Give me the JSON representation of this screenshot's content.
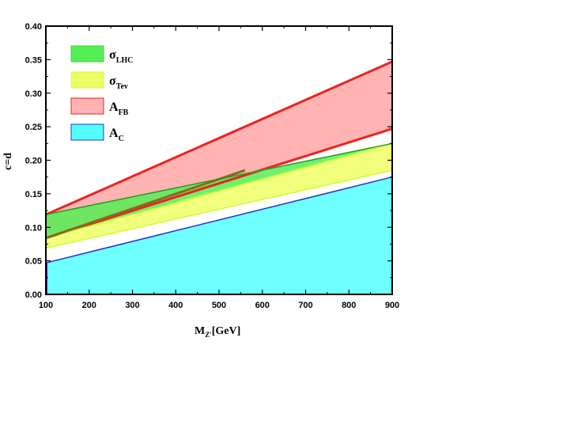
{
  "chart_data": {
    "type": "area",
    "x": [
      100,
      900
    ],
    "xlim": [
      100,
      900
    ],
    "ylim": [
      0.0,
      0.4
    ],
    "x_ticks": [
      "100",
      "200",
      "300",
      "400",
      "500",
      "600",
      "700",
      "800",
      "900"
    ],
    "y_ticks": [
      "0.00",
      "0.05",
      "0.10",
      "0.15",
      "0.20",
      "0.25",
      "0.30",
      "0.35",
      "0.40"
    ],
    "xlabel_main": "M",
    "xlabel_sub": "Z'",
    "xlabel_unit": "[GeV]",
    "ylabel": "c=d",
    "grid": false,
    "legend_position": "top-left",
    "series": [
      {
        "name": "σ",
        "name_sub": "LHC",
        "color": "#33dd33",
        "fill_color": "#55ee55",
        "lower": [
          0.084,
          0.225
        ],
        "upper": [
          0.119,
          0.225
        ]
      },
      {
        "name": "σ",
        "name_sub": "Tev",
        "color": "#ccff33",
        "fill_color": "#eeff66",
        "lower": [
          0.069,
          0.185
        ],
        "upper": [
          0.084,
          0.225
        ]
      },
      {
        "name": "A",
        "name_sub": "FB",
        "color": "#ee2222",
        "fill_color": "#ffb3b3",
        "lower": [
          0.084,
          0.247
        ],
        "upper": [
          0.119,
          0.347
        ]
      },
      {
        "name": "A",
        "name_sub": "C",
        "color": "#2233cc",
        "fill_color": "#55ffff",
        "lower": [
          0.0,
          0.0
        ],
        "upper": [
          0.047,
          0.175
        ]
      }
    ]
  }
}
